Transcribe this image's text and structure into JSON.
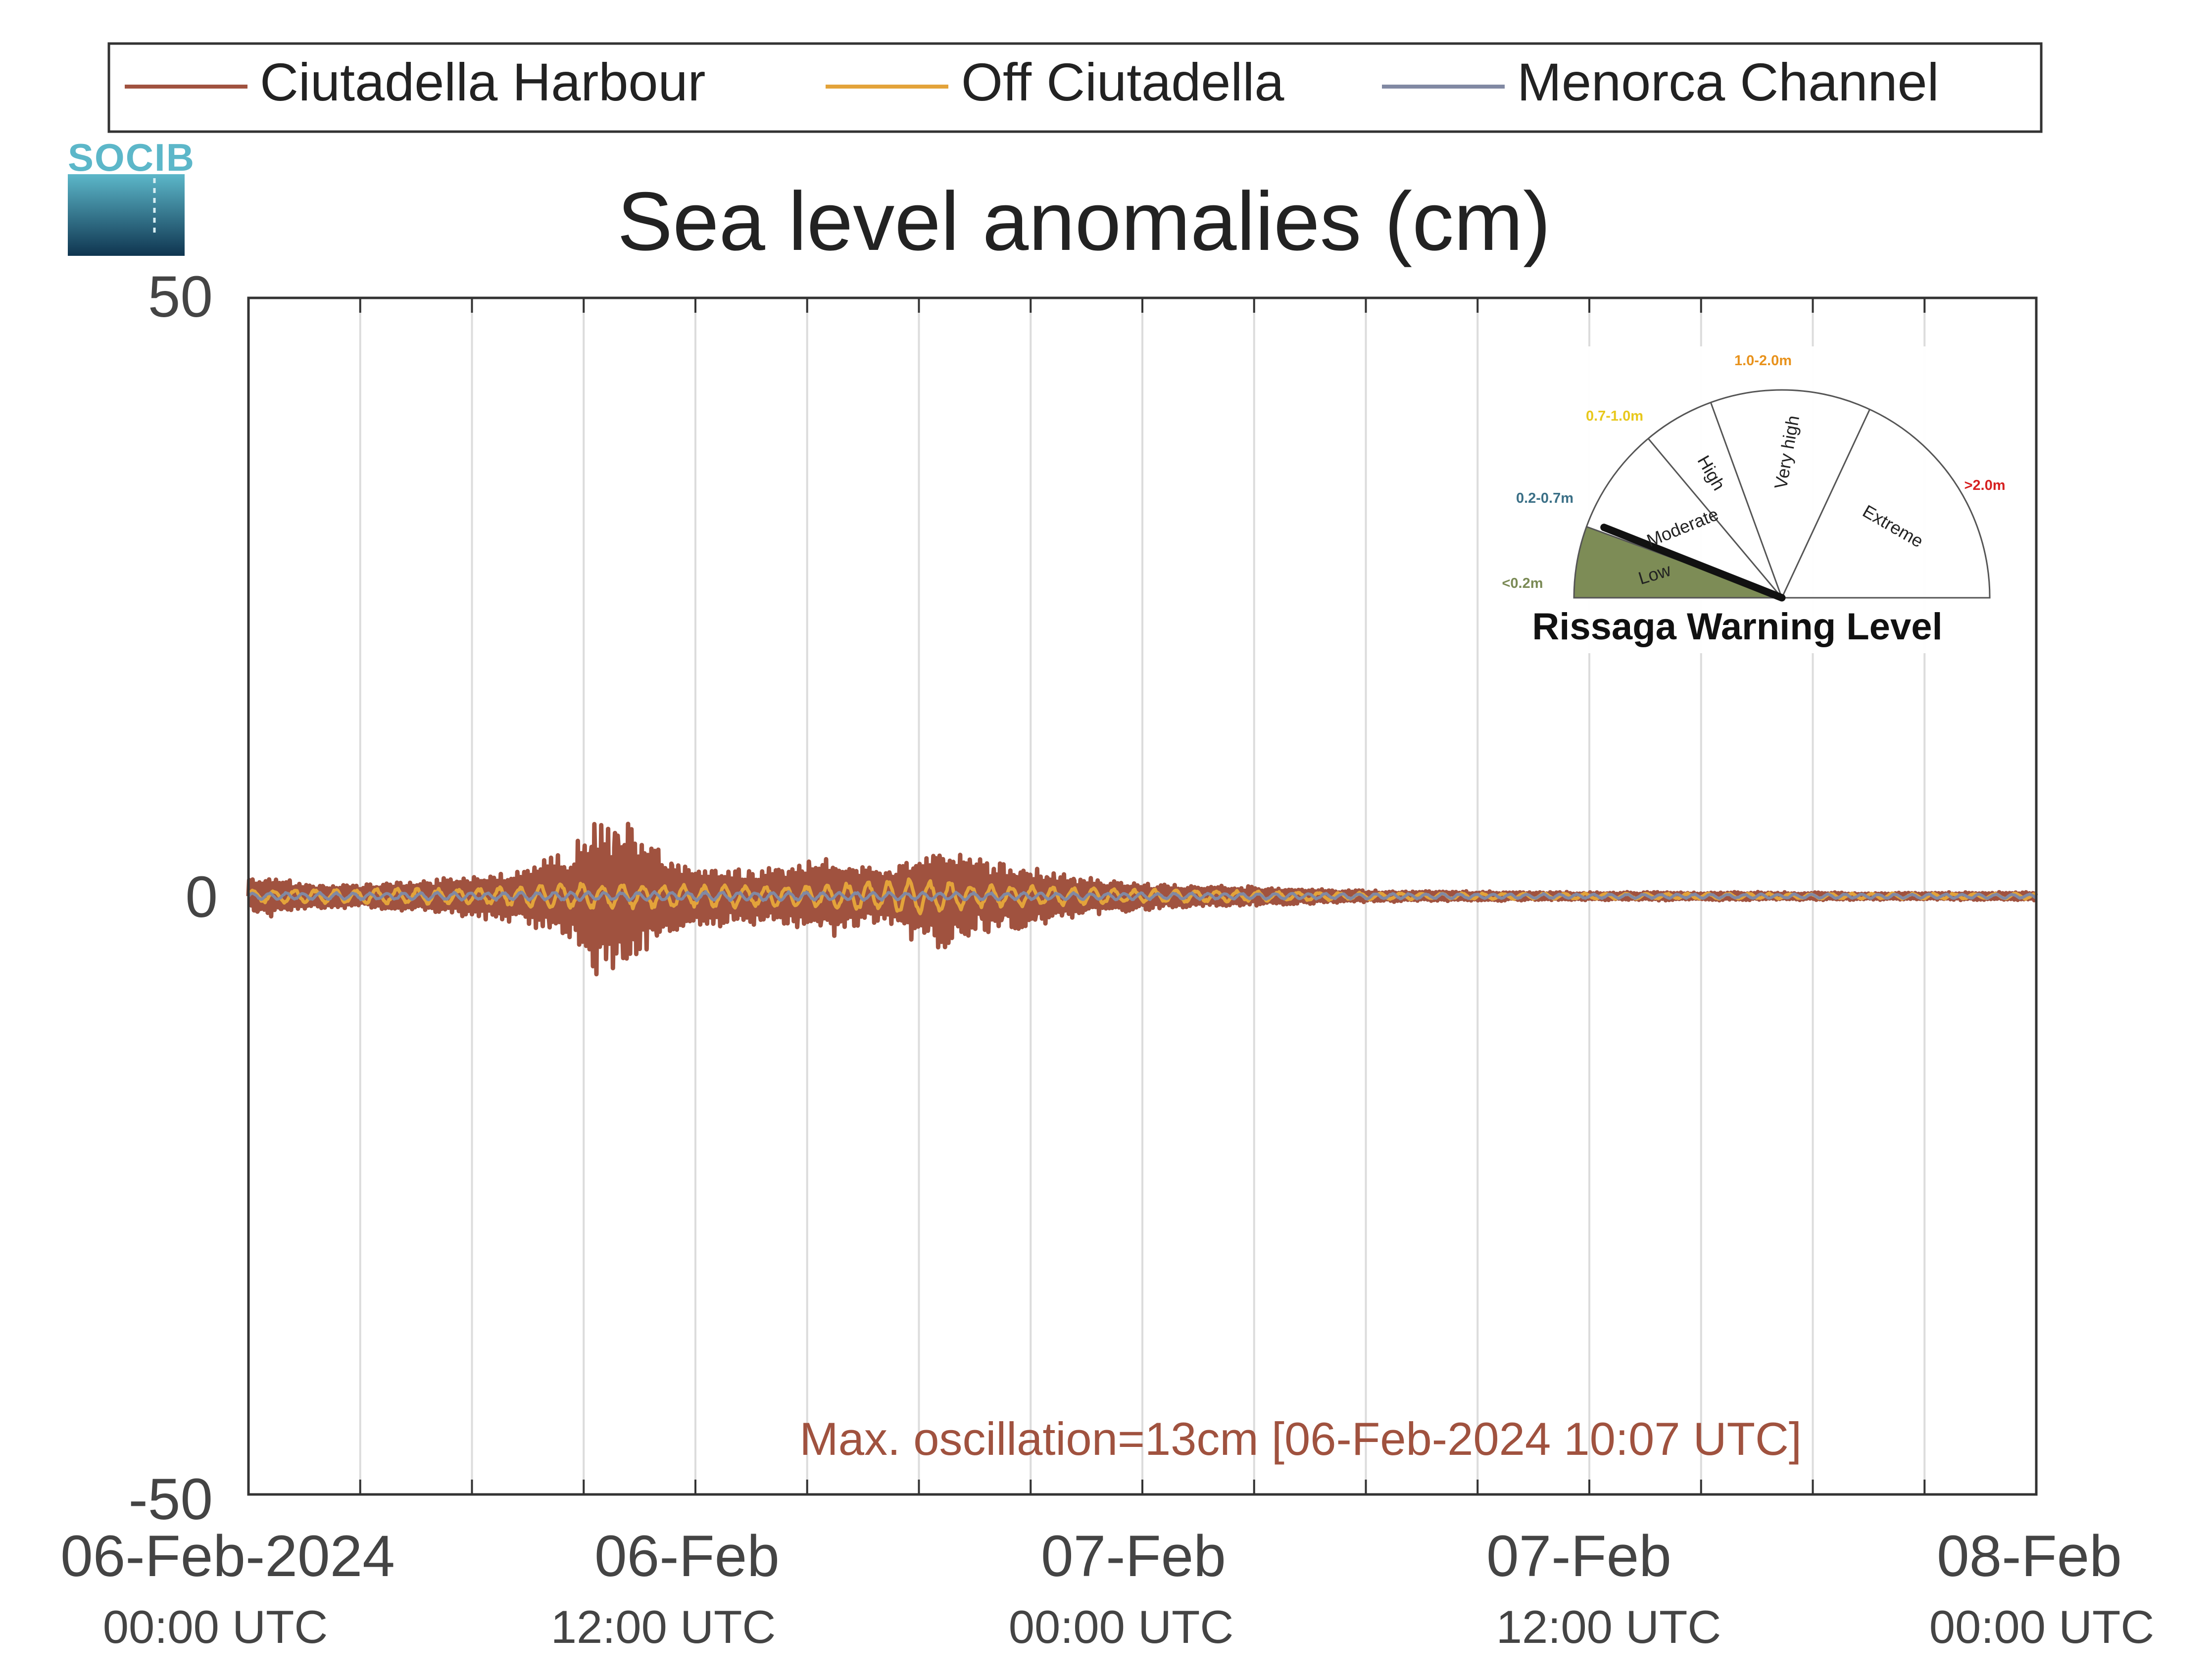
{
  "chart_data": {
    "type": "line",
    "title": "Sea level anomalies (cm)",
    "ylim": [
      -50,
      50
    ],
    "yticks": [
      50,
      0,
      -50
    ],
    "xlim_hours": [
      0,
      48
    ],
    "xticks": [
      {
        "hour": 0,
        "date": "06-Feb-2024",
        "time": "00:00 UTC"
      },
      {
        "hour": 12,
        "date": "06-Feb",
        "time": "12:00 UTC"
      },
      {
        "hour": 24,
        "date": "07-Feb",
        "time": "00:00 UTC"
      },
      {
        "hour": 36,
        "date": "07-Feb",
        "time": "12:00 UTC"
      },
      {
        "hour": 48,
        "date": "08-Feb",
        "time": "00:00 UTC"
      }
    ],
    "grid": true,
    "legend_position": "top",
    "series": [
      {
        "name": "Ciutadella Harbour",
        "color": "#a0523f",
        "envelope_cm": [
          [
            0,
            1.5
          ],
          [
            0.5,
            1.8
          ],
          [
            1.5,
            1.2
          ],
          [
            3,
            1.0
          ],
          [
            4.5,
            1.4
          ],
          [
            6,
            1.8
          ],
          [
            7.5,
            2.5
          ],
          [
            8.5,
            4.0
          ],
          [
            9.0,
            5.0
          ],
          [
            9.3,
            7.0
          ],
          [
            9.6,
            6.2
          ],
          [
            10.1,
            6.5
          ],
          [
            10.6,
            5.0
          ],
          [
            11.2,
            3.5
          ],
          [
            12,
            3.0
          ],
          [
            13,
            2.4
          ],
          [
            14,
            2.6
          ],
          [
            15,
            3.2
          ],
          [
            15.5,
            3.5
          ],
          [
            16.3,
            3.0
          ],
          [
            17,
            2.4
          ],
          [
            17.5,
            3.0
          ],
          [
            18.2,
            4.6
          ],
          [
            18.8,
            4.4
          ],
          [
            19.5,
            3.2
          ],
          [
            20.5,
            3.0
          ],
          [
            21.5,
            2.2
          ],
          [
            22.5,
            1.6
          ],
          [
            24,
            1.2
          ],
          [
            25,
            1.0
          ],
          [
            27,
            0.8
          ],
          [
            30,
            0.5
          ],
          [
            33,
            0.4
          ],
          [
            36,
            0.35
          ],
          [
            40,
            0.35
          ],
          [
            44,
            0.3
          ],
          [
            48,
            0.35
          ]
        ]
      },
      {
        "name": "Off Ciutadella",
        "color": "#e3a33a",
        "envelope_cm": [
          [
            0,
            0.6
          ],
          [
            6,
            0.7
          ],
          [
            9,
            1.2
          ],
          [
            12,
            1.0
          ],
          [
            15,
            1.0
          ],
          [
            18,
            1.6
          ],
          [
            20,
            1.0
          ],
          [
            24,
            0.6
          ],
          [
            30,
            0.3
          ],
          [
            36,
            0.25
          ],
          [
            48,
            0.25
          ]
        ]
      },
      {
        "name": "Menorca Channel",
        "color": "#8189a3",
        "envelope_cm": [
          [
            0,
            0.3
          ],
          [
            12,
            0.4
          ],
          [
            24,
            0.3
          ],
          [
            36,
            0.2
          ],
          [
            48,
            0.2
          ]
        ]
      }
    ],
    "annotation": "Max. oscillation=13cm [06-Feb-2024 10:07 UTC]",
    "annotation_color": "#a0523f"
  },
  "logo": {
    "text": "SOCIB"
  },
  "gauge": {
    "title": "Rissaga Warning Level",
    "active_level": "Low",
    "needle_fraction": 0.12,
    "levels": [
      {
        "name": "Low",
        "range": "<0.2m",
        "range_color": "#7a8a55",
        "active_fill": "#7d8c56"
      },
      {
        "name": "Moderate",
        "range": "0.2-0.7m",
        "range_color": "#3a6f86"
      },
      {
        "name": "High",
        "range": "0.7-1.0m",
        "range_color": "#e8c81c"
      },
      {
        "name": "Very high",
        "range": "1.0-2.0m",
        "range_color": "#e8921c"
      },
      {
        "name": "Extreme",
        "range": ">2.0m",
        "range_color": "#d62020"
      }
    ]
  }
}
